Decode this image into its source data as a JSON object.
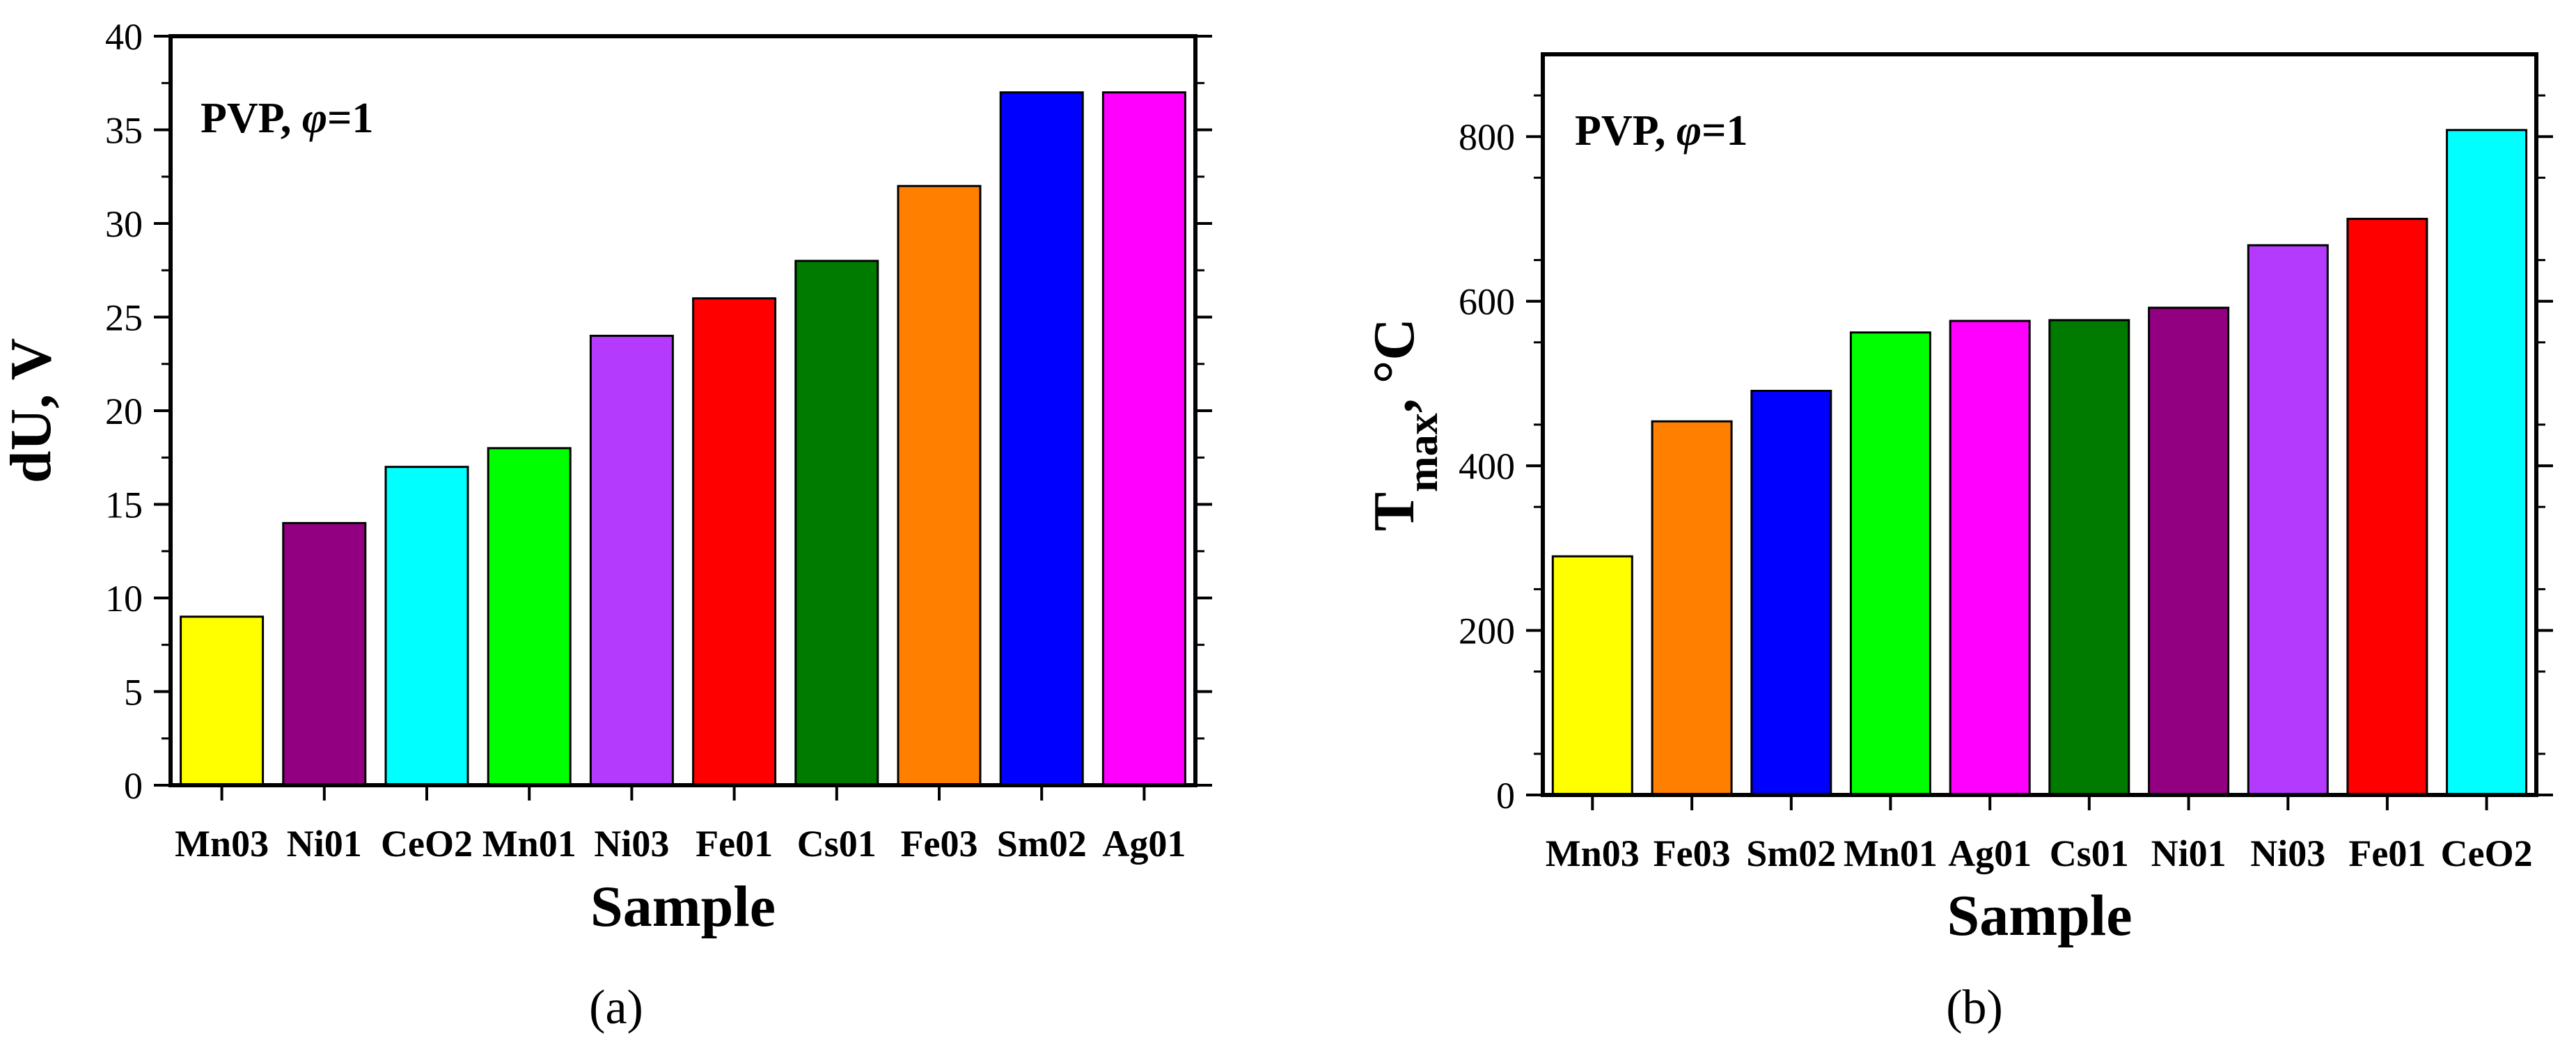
{
  "chart_data": [
    {
      "type": "bar",
      "panel": "a",
      "panel_label": "(a)",
      "categories": [
        "Mn03",
        "Ni01",
        "CeO2",
        "Mn01",
        "Ni03",
        "Fe01",
        "Cs01",
        "Fe03",
        "Sm02",
        "Ag01"
      ],
      "values": [
        9,
        14,
        17,
        18,
        24,
        26,
        28,
        32,
        37,
        37
      ],
      "colors": [
        "#ffff00",
        "#920081",
        "#00ffff",
        "#00ff00",
        "#b43bfe",
        "#ff0000",
        "#007b00",
        "#ff8000",
        "#0000ff",
        "#ff00ff"
      ],
      "xlabel": "Sample",
      "ylabel": "dU, V",
      "ylim": [
        0,
        40
      ],
      "yticks": [
        0,
        5,
        10,
        15,
        20,
        25,
        30,
        35,
        40
      ],
      "annotation": {
        "prefix": "PVP, ",
        "symbol": "φ",
        "suffix": "=1"
      }
    },
    {
      "type": "bar",
      "panel": "b",
      "panel_label": "(b)",
      "categories": [
        "Mn03",
        "Fe03",
        "Sm02",
        "Mn01",
        "Ag01",
        "Cs01",
        "Ni01",
        "Ni03",
        "Fe01",
        "CeO2"
      ],
      "values": [
        290,
        454,
        491,
        562,
        576,
        577,
        592,
        668,
        700,
        808
      ],
      "colors": [
        "#ffff00",
        "#ff8000",
        "#0000ff",
        "#00ff00",
        "#ff00ff",
        "#007b00",
        "#920081",
        "#b43bfe",
        "#ff0000",
        "#00ffff"
      ],
      "xlabel": "Sample",
      "ylabel": {
        "main": "T",
        "sub": "max",
        "suffix": ", °C"
      },
      "ylim": [
        0,
        900
      ],
      "yticks": [
        0,
        200,
        400,
        600,
        800
      ],
      "annotation": {
        "prefix": "PVP, ",
        "symbol": "φ",
        "suffix": "=1"
      }
    }
  ]
}
